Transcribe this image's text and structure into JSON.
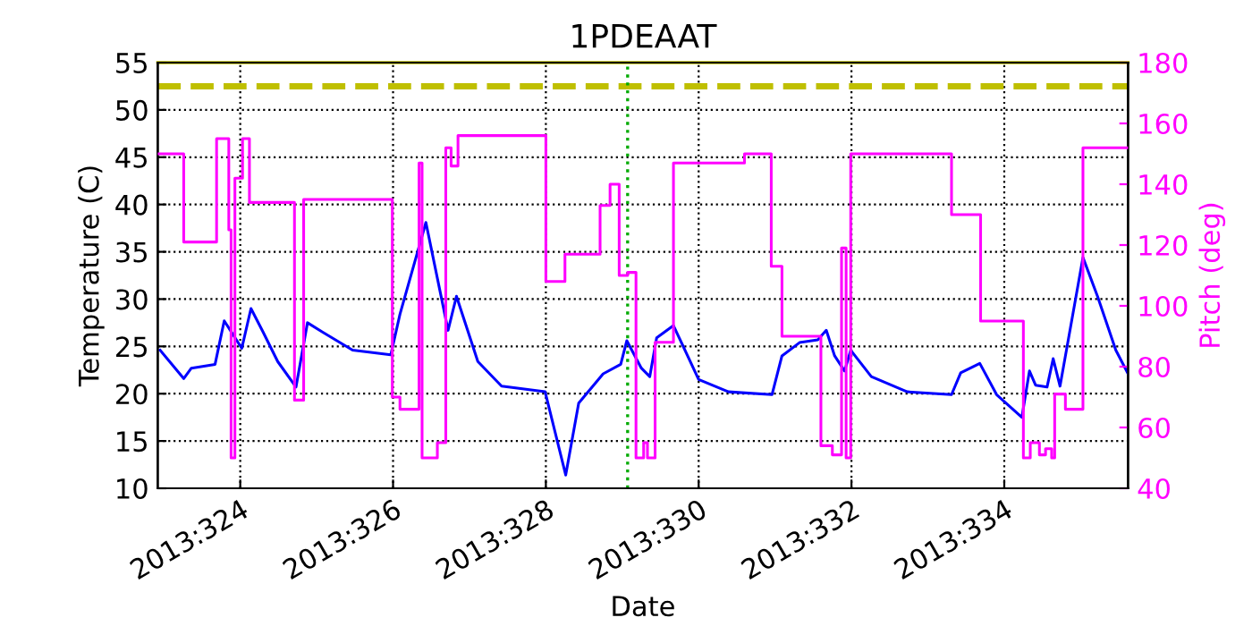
{
  "chart_data": {
    "type": "line",
    "title": "1PDEAAT",
    "xlabel": "Date",
    "ylabel": "Temperature (C)",
    "y2label": "Pitch (deg)",
    "xlim": [
      "2013-11-18T22:05",
      "2013-12-01T14:53"
    ],
    "xticks": [
      {
        "value": "2013-11-20",
        "label": "2013:324"
      },
      {
        "value": "2013-11-22",
        "label": "2013:326"
      },
      {
        "value": "2013-11-24",
        "label": "2013:328"
      },
      {
        "value": "2013-11-26",
        "label": "2013:330"
      },
      {
        "value": "2013-11-28",
        "label": "2013:332"
      },
      {
        "value": "2013-11-30",
        "label": "2013:334"
      }
    ],
    "ylim": [
      10,
      55
    ],
    "yticks": [
      10,
      15,
      20,
      25,
      30,
      35,
      40,
      45,
      50,
      55
    ],
    "y2lim": [
      40,
      180
    ],
    "y2ticks": [
      40,
      60,
      80,
      100,
      120,
      140,
      160,
      180
    ],
    "grid": true,
    "series": [
      {
        "color": "#0000ff",
        "x": [
          "2013-11-18T22:48",
          "2013-11-19T06:14",
          "2013-11-19T08:38",
          "2013-11-19T16:05",
          "2013-11-19T18:58",
          "2013-11-20T00:29",
          "2013-11-20T03:22",
          "2013-11-20T07:12",
          "2013-11-20T11:46",
          "2013-11-20T17:31",
          "2013-11-20T21:07",
          "2013-11-21T01:55",
          "2013-11-21T11:17",
          "2013-11-21T23:17",
          "2013-11-22T02:10",
          "2013-11-22T10:19",
          "2013-11-22T17:17",
          "2013-11-22T19:55",
          "2013-11-23T02:38",
          "2013-11-23T10:05",
          "2013-11-23T23:46",
          "2013-11-24T06:14",
          "2013-11-24T10:19",
          "2013-11-24T18:00",
          "2013-11-24T23:31",
          "2013-11-25T01:26",
          "2013-11-25T06:00",
          "2013-11-25T08:38",
          "2013-11-25T10:48",
          "2013-11-25T16:05",
          "2013-11-26T00:00",
          "2013-11-26T09:22",
          "2013-11-26T23:02",
          "2013-11-27T02:10",
          "2013-11-27T07:41",
          "2013-11-27T13:26",
          "2013-11-27T16:05",
          "2013-11-27T18:43",
          "2013-11-27T21:50",
          "2013-11-27T23:46",
          "2013-11-28T06:14",
          "2013-11-28T17:31",
          "2013-11-29T07:26",
          "2013-11-29T10:19",
          "2013-11-29T16:19",
          "2013-11-29T21:36",
          "2013-11-30T05:31",
          "2013-11-30T07:55",
          "2013-11-30T09:50",
          "2013-11-30T13:26",
          "2013-11-30T15:22",
          "2013-11-30T17:31",
          "2013-12-01T00:43",
          "2013-12-01T05:17",
          "2013-12-01T11:02",
          "2013-12-01T14:53"
        ],
        "values": [
          24.6,
          21.6,
          22.7,
          23.1,
          27.7,
          24.8,
          29.0,
          26.5,
          23.4,
          20.7,
          27.5,
          26.5,
          24.6,
          24.1,
          28.4,
          38.1,
          26.7,
          30.3,
          23.4,
          20.8,
          20.2,
          11.4,
          19.0,
          22.1,
          23.1,
          25.6,
          22.7,
          21.8,
          25.9,
          27.2,
          21.5,
          20.2,
          19.9,
          24.0,
          25.4,
          25.7,
          26.7,
          24.0,
          22.4,
          24.6,
          21.8,
          20.2,
          19.9,
          22.2,
          23.2,
          19.9,
          17.5,
          22.4,
          20.9,
          20.7,
          23.7,
          20.8,
          34.4,
          30.3,
          24.6,
          22.1
        ]
      },
      {
        "type": "step",
        "axis": "y2",
        "color": "#ff00ff",
        "x": [
          "2013-11-18T22:05",
          "2013-11-19T06:14",
          "2013-11-19T16:34",
          "2013-11-19T20:24",
          "2013-11-19T21:07",
          "2013-11-19T22:19",
          "2013-11-20T00:43",
          "2013-11-20T02:53",
          "2013-11-20T17:02",
          "2013-11-20T19:55",
          "2013-11-21T23:46",
          "2013-11-22T02:10",
          "2013-11-22T08:10",
          "2013-11-22T09:07",
          "2013-11-22T13:55",
          "2013-11-22T16:34",
          "2013-11-22T18:14",
          "2013-11-22T20:24",
          "2013-11-24T00:00",
          "2013-11-24T06:00",
          "2013-11-24T17:02",
          "2013-11-24T20:10",
          "2013-11-24T23:02",
          "2013-11-25T01:41",
          "2013-11-25T04:19",
          "2013-11-25T06:43",
          "2013-11-25T07:55",
          "2013-11-25T10:19",
          "2013-11-25T16:05",
          "2013-11-26T14:24",
          "2013-11-26T22:48",
          "2013-11-27T02:10",
          "2013-11-27T14:24",
          "2013-11-27T18:00",
          "2013-11-27T20:53",
          "2013-11-27T22:19",
          "2013-11-27T23:46",
          "2013-11-29T07:26",
          "2013-11-29T16:34",
          "2013-11-30T06:00",
          "2013-11-30T08:10",
          "2013-11-30T11:02",
          "2013-11-30T12:58",
          "2013-11-30T14:53",
          "2013-11-30T15:50",
          "2013-11-30T19:12",
          "2013-12-01T00:43",
          "2013-12-01T14:53"
        ],
        "values": [
          150,
          121,
          155,
          125,
          50,
          142,
          155,
          134,
          69,
          135,
          70,
          66,
          147,
          50,
          55,
          152,
          146,
          156,
          108,
          117,
          133,
          140,
          110,
          111,
          50,
          55,
          50,
          88,
          147,
          150,
          113,
          90,
          54,
          51,
          119,
          50,
          150,
          130,
          95,
          50,
          55,
          51,
          53,
          50,
          71,
          66,
          152,
          152
        ]
      }
    ],
    "ref_lines": [
      {
        "axis": "y",
        "value": 52.5,
        "color": "#bfbf00",
        "line_style": "dashed"
      },
      {
        "axis": "y",
        "value": 55,
        "color": "#bfbf00",
        "line_style": "solid"
      },
      {
        "axis": "x",
        "value": "2013-11-25T01:41",
        "color": "#00aa00",
        "line_style": "dotted"
      }
    ]
  }
}
